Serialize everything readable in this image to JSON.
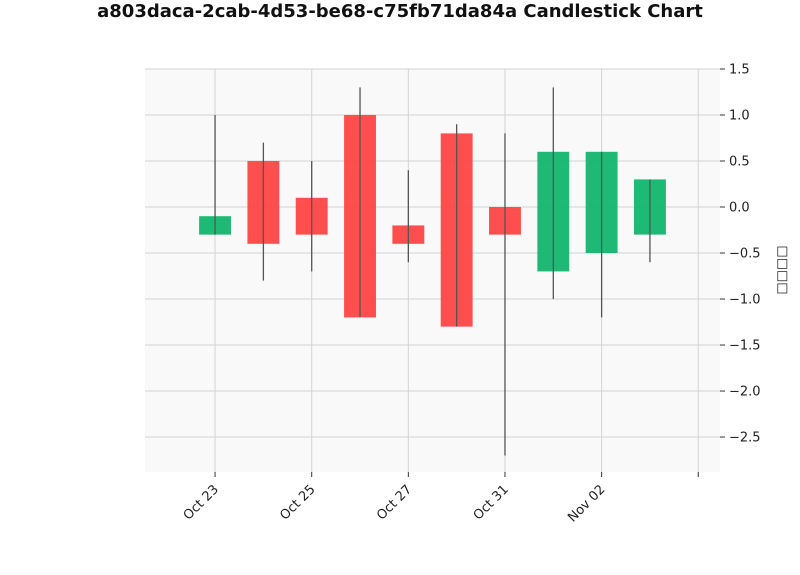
{
  "chart_data": {
    "type": "candlestick",
    "title": "a803daca-2cab-4d53-be68-c75fb71da84a Candlestick Chart",
    "xlabel": "",
    "ylabel": "□□□□",
    "ylim": [
      -2.88,
      1.5
    ],
    "yticks": [
      1.5,
      1.0,
      0.5,
      0.0,
      -0.5,
      -1.0,
      -1.5,
      -2.0,
      -2.5
    ],
    "ytick_labels": [
      "1.5",
      "1.0",
      "0.5",
      "0.0",
      "−0.5",
      "−1.0",
      "−1.5",
      "−2.0",
      "−2.5"
    ],
    "x_dates": [
      "Oct 23",
      "Oct 24",
      "Oct 25",
      "Oct 26",
      "Oct 27",
      "Oct 28",
      "Oct 31",
      "Nov 01",
      "Nov 02",
      "Nov 03"
    ],
    "xticks": [
      {
        "label": "Oct 23",
        "index": 0
      },
      {
        "label": "Oct 25",
        "index": 2
      },
      {
        "label": "Oct 27",
        "index": 4
      },
      {
        "label": "Oct 31",
        "index": 6
      },
      {
        "label": "Nov 02",
        "index": 8
      },
      {
        "label": "",
        "index": 10
      }
    ],
    "xlim": [
      -1.45,
      10.45
    ],
    "candles": [
      {
        "date": "Oct 23",
        "open": -0.3,
        "high": 1.0,
        "low": -0.3,
        "close": -0.1
      },
      {
        "date": "Oct 24",
        "open": 0.5,
        "high": 0.7,
        "low": -0.8,
        "close": -0.4
      },
      {
        "date": "Oct 25",
        "open": 0.1,
        "high": 0.5,
        "low": -0.7,
        "close": -0.3
      },
      {
        "date": "Oct 26",
        "open": 1.0,
        "high": 1.3,
        "low": -1.2,
        "close": -1.2
      },
      {
        "date": "Oct 27",
        "open": -0.2,
        "high": 0.4,
        "low": -0.6,
        "close": -0.4
      },
      {
        "date": "Oct 28",
        "open": 0.8,
        "high": 0.9,
        "low": -1.3,
        "close": -1.3
      },
      {
        "date": "Oct 31",
        "open": 0.0,
        "high": 0.8,
        "low": -2.7,
        "close": -0.3
      },
      {
        "date": "Nov 01",
        "open": -0.7,
        "high": 1.3,
        "low": -1.0,
        "close": 0.6
      },
      {
        "date": "Nov 02",
        "open": -0.5,
        "high": 0.6,
        "low": -1.2,
        "close": 0.6
      },
      {
        "date": "Nov 03",
        "open": -0.3,
        "high": 0.3,
        "low": -0.6,
        "close": 0.3
      }
    ],
    "colors": {
      "up": "#12b56e",
      "down": "#ff4444",
      "wick": "#555555",
      "plot_background": "#f9f9f9",
      "grid": "#d3d3d3"
    },
    "grid": true,
    "y_axis_side": "right",
    "legend": "none"
  }
}
